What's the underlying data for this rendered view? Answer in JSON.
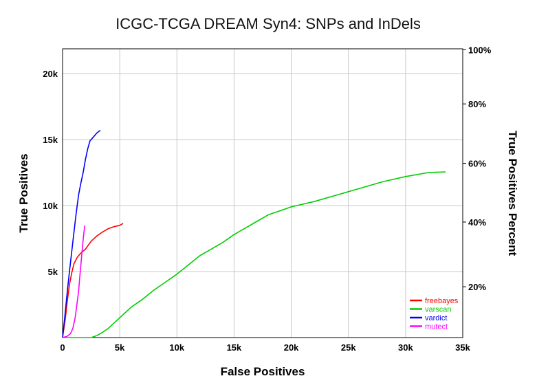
{
  "chart_data": {
    "type": "line",
    "title": "ICGC-TCGA DREAM Syn4: SNPs and InDels",
    "xlabel": "False Positives",
    "ylabel": "True Positives",
    "y2label": "True Positives Percent",
    "xlim": [
      0,
      35000
    ],
    "ylim": [
      0,
      20000
    ],
    "x_ticks": [
      {
        "value": 0,
        "label": "0"
      },
      {
        "value": 5000,
        "label": "5k"
      },
      {
        "value": 10000,
        "label": "10k"
      },
      {
        "value": 15000,
        "label": "15k"
      },
      {
        "value": 20000,
        "label": "20k"
      },
      {
        "value": 25000,
        "label": "25k"
      },
      {
        "value": 30000,
        "label": "30k"
      },
      {
        "value": 35000,
        "label": "35k"
      }
    ],
    "y_ticks": [
      {
        "value": 5000,
        "label": "5k"
      },
      {
        "value": 10000,
        "label": "10k"
      },
      {
        "value": 15000,
        "label": "15k"
      },
      {
        "value": 20000,
        "label": "20k"
      }
    ],
    "y2_ticks": [
      {
        "value": 3850,
        "label": "20%"
      },
      {
        "value": 8750,
        "label": "40%"
      },
      {
        "value": 13200,
        "label": "60%"
      },
      {
        "value": 17700,
        "label": "80%"
      },
      {
        "value": 21800,
        "label": "100%"
      }
    ],
    "grid": true,
    "legend_position": "bottom-right",
    "series": [
      {
        "name": "freebayes",
        "color": "#ff0000",
        "points": [
          [
            0,
            0
          ],
          [
            100,
            600
          ],
          [
            250,
            1500
          ],
          [
            400,
            2700
          ],
          [
            600,
            4000
          ],
          [
            800,
            4900
          ],
          [
            1000,
            5600
          ],
          [
            1300,
            6100
          ],
          [
            1600,
            6400
          ],
          [
            2000,
            6700
          ],
          [
            2500,
            7300
          ],
          [
            3000,
            7700
          ],
          [
            3500,
            8000
          ],
          [
            4000,
            8250
          ],
          [
            4500,
            8400
          ],
          [
            5000,
            8500
          ],
          [
            5300,
            8650
          ]
        ]
      },
      {
        "name": "varscan",
        "color": "#00cc00",
        "points": [
          [
            0,
            0
          ],
          [
            2500,
            0
          ],
          [
            3000,
            150
          ],
          [
            3500,
            400
          ],
          [
            4000,
            700
          ],
          [
            4500,
            1100
          ],
          [
            5000,
            1500
          ],
          [
            5500,
            1900
          ],
          [
            6000,
            2300
          ],
          [
            7000,
            2900
          ],
          [
            8000,
            3600
          ],
          [
            9000,
            4200
          ],
          [
            10000,
            4800
          ],
          [
            11000,
            5500
          ],
          [
            12000,
            6200
          ],
          [
            13000,
            6700
          ],
          [
            14000,
            7200
          ],
          [
            15000,
            7800
          ],
          [
            16000,
            8300
          ],
          [
            17000,
            8800
          ],
          [
            18000,
            9300
          ],
          [
            19000,
            9600
          ],
          [
            20000,
            9900
          ],
          [
            22000,
            10300
          ],
          [
            24000,
            10800
          ],
          [
            26000,
            11300
          ],
          [
            28000,
            11800
          ],
          [
            30000,
            12200
          ],
          [
            32000,
            12500
          ],
          [
            33500,
            12550
          ]
        ]
      },
      {
        "name": "vardict",
        "color": "#0000ff",
        "points": [
          [
            0,
            0
          ],
          [
            150,
            1200
          ],
          [
            300,
            2500
          ],
          [
            450,
            3800
          ],
          [
            600,
            5000
          ],
          [
            800,
            6500
          ],
          [
            1000,
            8000
          ],
          [
            1200,
            9500
          ],
          [
            1400,
            10800
          ],
          [
            1600,
            11700
          ],
          [
            1800,
            12500
          ],
          [
            2000,
            13500
          ],
          [
            2200,
            14300
          ],
          [
            2400,
            14900
          ],
          [
            2700,
            15200
          ],
          [
            3000,
            15500
          ],
          [
            3300,
            15700
          ]
        ]
      },
      {
        "name": "mutect",
        "color": "#ff00ff",
        "points": [
          [
            0,
            0
          ],
          [
            400,
            100
          ],
          [
            700,
            300
          ],
          [
            900,
            700
          ],
          [
            1100,
            1500
          ],
          [
            1250,
            2500
          ],
          [
            1400,
            3500
          ],
          [
            1500,
            4500
          ],
          [
            1600,
            5500
          ],
          [
            1700,
            6500
          ],
          [
            1800,
            7400
          ],
          [
            1900,
            8200
          ],
          [
            1950,
            8500
          ]
        ]
      }
    ]
  }
}
